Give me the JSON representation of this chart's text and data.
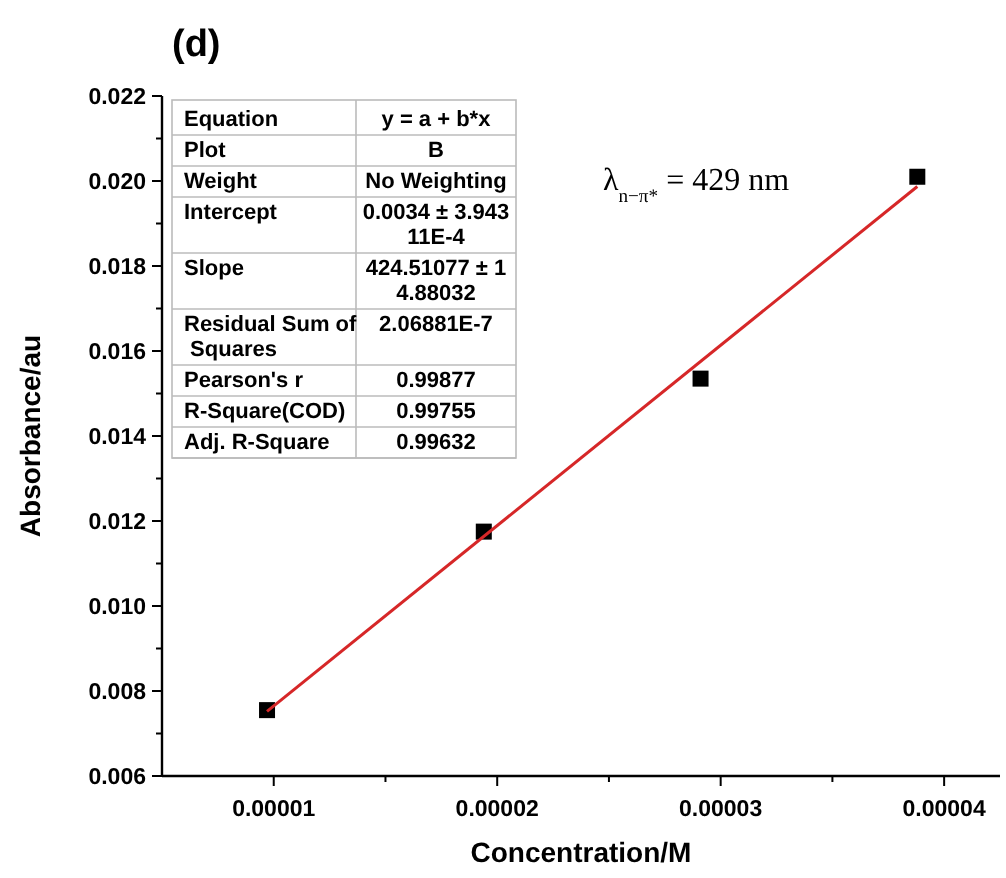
{
  "chart_data": {
    "type": "scatter",
    "title": "(d)",
    "xlabel": "Concentration/M",
    "ylabel": "Absorbance/au",
    "xlim": [
      5e-06,
      4.25e-05
    ],
    "xticks": [
      {
        "value": 1e-05,
        "label": "0.00001"
      },
      {
        "value": 2e-05,
        "label": "0.00002"
      },
      {
        "value": 3e-05,
        "label": "0.00003"
      },
      {
        "value": 4e-05,
        "label": "0.00004"
      }
    ],
    "ylim": [
      0.006,
      0.022
    ],
    "yticks": [
      {
        "value": 0.006,
        "label": "0.006"
      },
      {
        "value": 0.008,
        "label": "0.008"
      },
      {
        "value": 0.01,
        "label": "0.010"
      },
      {
        "value": 0.012,
        "label": "0.012"
      },
      {
        "value": 0.014,
        "label": "0.014"
      },
      {
        "value": 0.016,
        "label": "0.016"
      },
      {
        "value": 0.018,
        "label": "0.018"
      },
      {
        "value": 0.02,
        "label": "0.020"
      },
      {
        "value": 0.022,
        "label": "0.022"
      }
    ],
    "marker": "square",
    "grid": false,
    "series": [
      {
        "color": "#000000",
        "x": [
          9.7e-06,
          1.94e-05,
          2.91e-05,
          3.88e-05
        ],
        "values": [
          0.00755,
          0.01175,
          0.01535,
          0.0201
        ]
      },
      {
        "type": "line",
        "marker": "none",
        "color": "#d62728",
        "x": [
          9.7e-06,
          3.88e-05
        ],
        "values": [
          0.00752,
          0.01987
        ]
      }
    ],
    "annotations": [
      "λ$_{n−π*}$ = 429 nm",
      "Equation",
      "y = a + b*x",
      "Plot",
      "B",
      "Weight",
      "No Weighting",
      "Intercept",
      "0.0034 ± 3.943\n11E-4",
      "Slope",
      "424.51077 ± 1\n4.88032",
      "Residual Sum of\n Squares",
      "2.06881E-7",
      "Pearson's r",
      "0.99877",
      "R-Square(COD)",
      "0.99755",
      "Adj. R-Square",
      "0.99632"
    ]
  }
}
